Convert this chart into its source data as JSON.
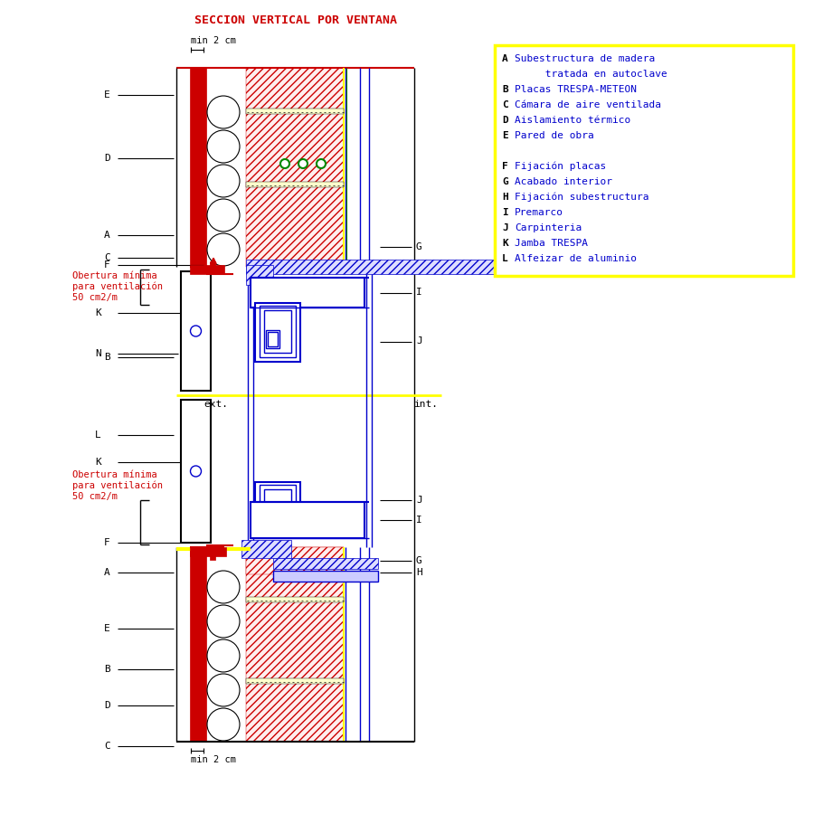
{
  "title": "SECCION VERTICAL POR VENTANA",
  "title_color": "#cc0000",
  "title_fontsize": 9.5,
  "legend_entries": [
    [
      "A",
      "Subestructura de madera"
    ],
    [
      "",
      "     tratada en autoclave"
    ],
    [
      "B",
      "Placas TRESPA-METEON"
    ],
    [
      "C",
      "Cámara de aire ventilada"
    ],
    [
      "D",
      "Aislamiento térmico"
    ],
    [
      "E",
      "Pared de obra"
    ],
    [
      "",
      ""
    ],
    [
      "F",
      "Fijación placas"
    ],
    [
      "G",
      "Acabado interior"
    ],
    [
      "H",
      "Fijación subestructura"
    ],
    [
      "I",
      "Premarco"
    ],
    [
      "J",
      "Carpinteria"
    ],
    [
      "K",
      "Jamba TRESPA"
    ],
    [
      "L",
      "Alfeizar de aluminio"
    ]
  ],
  "bg_color": "#ffffff",
  "red": "#cc0000",
  "blue": "#0000cc",
  "yellow": "#ffff00",
  "black": "#000000",
  "green": "#008800",
  "gray_blue": "#ddddff"
}
